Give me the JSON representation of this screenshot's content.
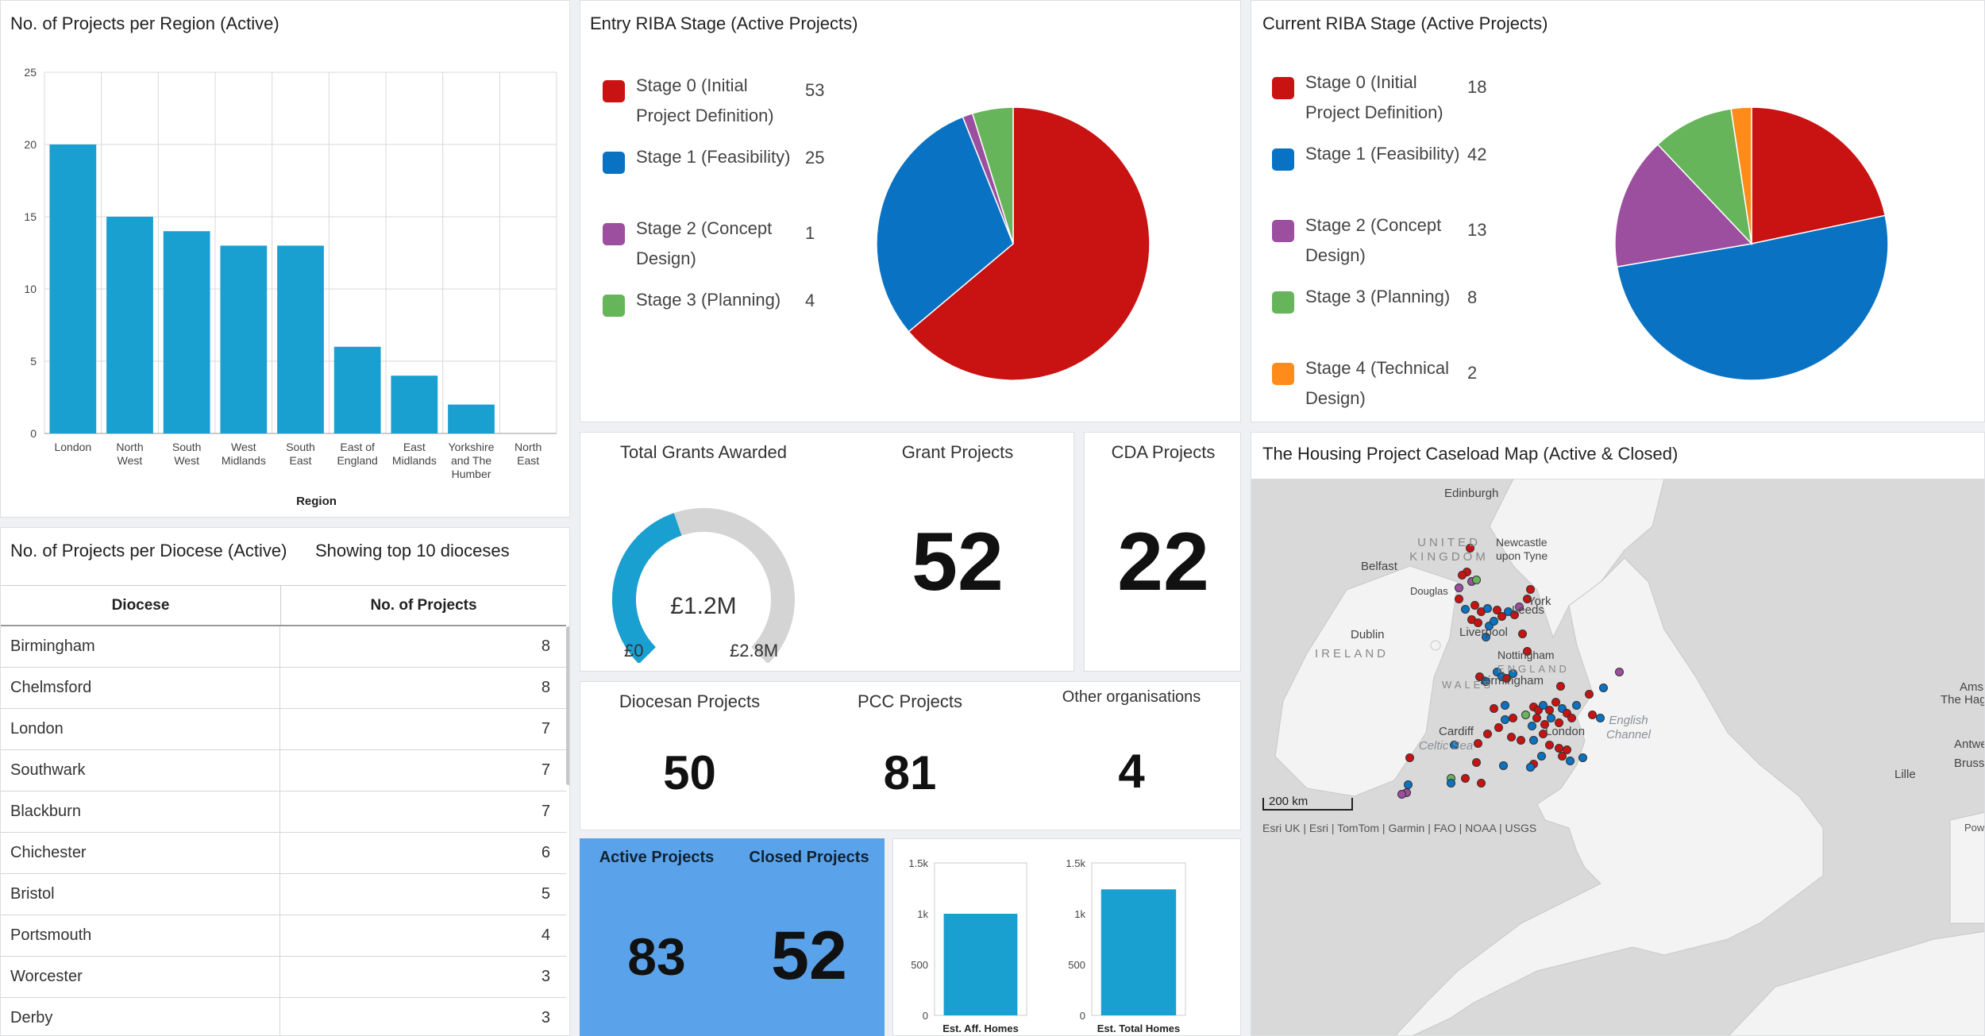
{
  "colors": {
    "bar": "#1a9fd1",
    "red": "#c91212",
    "blue": "#0a72c2",
    "purple": "#9b4f9e",
    "green": "#66b55b",
    "orange": "#ff8c1a",
    "gauge_track": "#d4d4d4",
    "blue_panel": "#5aa3ea"
  },
  "region_chart": {
    "title": "No. of Projects per Region (Active)",
    "chart_data": {
      "type": "bar",
      "categories": [
        "London",
        "North West",
        "South West",
        "West Midlands",
        "South East",
        "East of England",
        "East Midlands",
        "Yorkshire and The Humber",
        "North East"
      ],
      "category_lines": [
        [
          "London"
        ],
        [
          "North",
          "West"
        ],
        [
          "South",
          "West"
        ],
        [
          "West",
          "Midlands"
        ],
        [
          "South",
          "East"
        ],
        [
          "East of",
          "England"
        ],
        [
          "East",
          "Midlands"
        ],
        [
          "Yorkshire",
          "and The",
          "Humber"
        ],
        [
          "North",
          "East"
        ]
      ],
      "values": [
        20,
        15,
        14,
        13,
        13,
        6,
        4,
        2,
        0
      ],
      "xlabel": "Region",
      "ylim": [
        0,
        25
      ],
      "yticks": [
        "0",
        "5",
        "10",
        "15",
        "20",
        "25"
      ],
      "grid": true
    }
  },
  "entry_riba": {
    "title": "Entry RIBA Stage (Active Projects)",
    "legend": [
      {
        "lines": [
          "Stage 0 (Initial",
          "Project Definition)"
        ],
        "value": "53",
        "color": "red"
      },
      {
        "lines": [
          "Stage 1 (Feasibility)"
        ],
        "value": "25",
        "color": "blue"
      },
      {
        "lines": [
          "Stage 2 (Concept",
          "Design)"
        ],
        "value": "1",
        "color": "purple"
      },
      {
        "lines": [
          "Stage 3 (Planning)"
        ],
        "value": "4",
        "color": "green"
      }
    ],
    "chart_data": {
      "type": "pie",
      "labels": [
        "Stage 0 (Initial Project Definition)",
        "Stage 1 (Feasibility)",
        "Stage 2 (Concept Design)",
        "Stage 3 (Planning)"
      ],
      "values": [
        53,
        25,
        1,
        4
      ]
    }
  },
  "current_riba": {
    "title": "Current RIBA Stage (Active Projects)",
    "legend": [
      {
        "lines": [
          "Stage 0 (Initial",
          "Project Definition)"
        ],
        "value": "18",
        "color": "red"
      },
      {
        "lines": [
          "Stage 1 (Feasibility)"
        ],
        "value": "42",
        "color": "blue"
      },
      {
        "lines": [
          "Stage 2 (Concept",
          "Design)"
        ],
        "value": "13",
        "color": "purple"
      },
      {
        "lines": [
          "Stage 3 (Planning)"
        ],
        "value": "8",
        "color": "green"
      },
      {
        "lines": [
          "Stage 4 (Technical",
          "Design)"
        ],
        "value": "2",
        "color": "orange"
      }
    ],
    "chart_data": {
      "type": "pie",
      "labels": [
        "Stage 0 (Initial Project Definition)",
        "Stage 1 (Feasibility)",
        "Stage 2 (Concept Design)",
        "Stage 3 (Planning)",
        "Stage 4 (Technical Design)"
      ],
      "values": [
        18,
        42,
        13,
        8,
        2
      ]
    }
  },
  "grants": {
    "label": "Total Grants Awarded",
    "center": "£1.2M",
    "min": "£0",
    "max": "£2.8M",
    "fraction": 0.43
  },
  "grant_projects": {
    "label": "Grant Projects",
    "value": "52"
  },
  "cda_projects": {
    "label": "CDA Projects",
    "value": "22"
  },
  "diocesan": {
    "label": "Diocesan Projects",
    "value": "50"
  },
  "pcc": {
    "label": "PCC Projects",
    "value": "81"
  },
  "other": {
    "label": "Other organisations",
    "value": "4"
  },
  "active_closed": {
    "active_label": "Active Projects",
    "active_value": "83",
    "closed_label": "Closed Projects",
    "closed_value": "52"
  },
  "homes": {
    "aff": {
      "chart_data": {
        "type": "bar",
        "categories": [
          "Est. Aff. Homes"
        ],
        "values": [
          1000
        ],
        "ylim": [
          0,
          1500
        ],
        "yticks": [
          "0",
          "500",
          "1k",
          "1.5k"
        ]
      }
    },
    "total": {
      "chart_data": {
        "type": "bar",
        "categories": [
          "Est. Total Homes"
        ],
        "values": [
          1240
        ],
        "ylim": [
          0,
          1500
        ],
        "yticks": [
          "0",
          "500",
          "1k",
          "1.5k"
        ]
      }
    }
  },
  "diocese_table": {
    "title": "No. of Projects per Diocese (Active)",
    "subtitle": "Showing top 10 dioceses",
    "headers": [
      "Diocese",
      "No. of Projects"
    ],
    "rows": [
      [
        "Birmingham",
        "8"
      ],
      [
        "Chelmsford",
        "8"
      ],
      [
        "London",
        "7"
      ],
      [
        "Southwark",
        "7"
      ],
      [
        "Blackburn",
        "7"
      ],
      [
        "Chichester",
        "6"
      ],
      [
        "Bristol",
        "5"
      ],
      [
        "Portsmouth",
        "4"
      ],
      [
        "Worcester",
        "3"
      ],
      [
        "Derby",
        "3"
      ]
    ]
  },
  "map": {
    "title": "The Housing Project Caseload Map (Active & Closed)",
    "places": [
      "Edinburgh",
      "Newcastle upon Tyne",
      "Belfast",
      "Douglas",
      "York",
      "Leeds",
      "Dublin",
      "Liverpool",
      "Nottingham",
      "Birmingham",
      "Cardiff",
      "London",
      "Lille",
      "Antwe",
      "Brusse",
      "Ams",
      "The Hag"
    ],
    "countries": [
      "UNITED KINGDOM",
      "IRELAND",
      "ENGLAND",
      "WALES"
    ],
    "seas": [
      "Celtic Sea",
      "English Channel"
    ],
    "scale": "200 km",
    "attribution": "Esri UK | Esri | TomTom | Garmin | FAO | NOAA | USGS",
    "powered": "Powe"
  }
}
